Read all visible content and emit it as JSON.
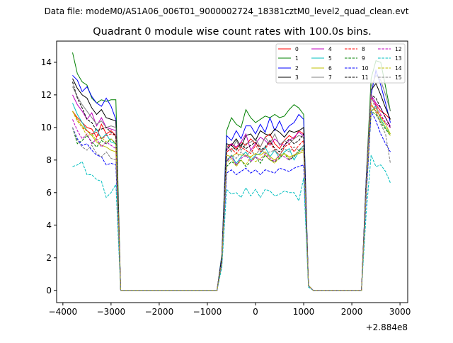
{
  "chart_data": {
    "type": "line",
    "suptitle": "Data file: modeM0/AS1A06_006T01_9000002724_18381cztM0_level2_quad_clean.evt",
    "title": "Quadrant 0 module wise count rates with 100.0s bins.",
    "xlabel": "",
    "ylabel": "",
    "x_offset_label": "+2.884e8",
    "x_start": -3800,
    "x_step": 100,
    "xlim": [
      -4130,
      3160
    ],
    "ylim": [
      -0.75,
      15.3
    ],
    "xticks": [
      -4000,
      -3000,
      -2000,
      -1000,
      0,
      1000,
      2000,
      3000
    ],
    "xtick_labels": [
      "−4000",
      "−3000",
      "−2000",
      "−1000",
      "0",
      "1000",
      "2000",
      "3000"
    ],
    "yticks": [
      0,
      2,
      4,
      6,
      8,
      10,
      12,
      14
    ],
    "ytick_labels": [
      "0",
      "2",
      "4",
      "6",
      "8",
      "10",
      "12",
      "14"
    ],
    "grid": false,
    "legend_position": "top-right",
    "series": [
      {
        "name": "0",
        "color": "#ff0000",
        "dash": false,
        "values": [
          11.0,
          10.6,
          10.3,
          10.0,
          9.9,
          9.4,
          10.2,
          9.6,
          9.8,
          9.5,
          0,
          0,
          0,
          0,
          0,
          0,
          0,
          0,
          0,
          0,
          0,
          0,
          0,
          0,
          0,
          0,
          0,
          0,
          0,
          0,
          0,
          2.0,
          8.8,
          9.0,
          8.7,
          9.1,
          8.9,
          9.3,
          9.0,
          8.8,
          9.4,
          9.6,
          9.0,
          8.7,
          9.2,
          9.5,
          9.3,
          9.8,
          9.6,
          0.3,
          0,
          0,
          0,
          0,
          0,
          0,
          0,
          0,
          0,
          0,
          0,
          6.5,
          11.8,
          11.4,
          11.0,
          10.8,
          10.5
        ]
      },
      {
        "name": "1",
        "color": "#008000",
        "dash": false,
        "values": [
          14.6,
          13.3,
          12.8,
          12.6,
          11.8,
          11.5,
          11.7,
          11.6,
          11.7,
          11.7,
          0,
          0,
          0,
          0,
          0,
          0,
          0,
          0,
          0,
          0,
          0,
          0,
          0,
          0,
          0,
          0,
          0,
          0,
          0,
          0,
          0,
          2.2,
          9.8,
          10.6,
          10.2,
          10.0,
          11.1,
          10.6,
          10.3,
          10.5,
          10.7,
          10.6,
          10.8,
          10.6,
          10.7,
          11.1,
          11.4,
          11.2,
          10.8,
          0.3,
          0,
          0,
          0,
          0,
          0,
          0,
          0,
          0,
          0,
          0,
          0,
          7.0,
          13.0,
          14.1,
          14.0,
          12.5,
          11.0
        ]
      },
      {
        "name": "2",
        "color": "#0000ff",
        "dash": false,
        "values": [
          13.2,
          12.9,
          12.2,
          12.5,
          11.9,
          11.5,
          11.3,
          11.8,
          11.3,
          10.5,
          0,
          0,
          0,
          0,
          0,
          0,
          0,
          0,
          0,
          0,
          0,
          0,
          0,
          0,
          0,
          0,
          0,
          0,
          0,
          0,
          0,
          2.1,
          9.5,
          9.2,
          9.8,
          9.3,
          10.1,
          10.1,
          9.6,
          10.2,
          9.7,
          10.6,
          9.8,
          10.4,
          9.7,
          10.1,
          10.3,
          10.8,
          10.5,
          0.3,
          0,
          0,
          0,
          0,
          0,
          0,
          0,
          0,
          0,
          0,
          0,
          7.0,
          12.0,
          13.5,
          12.6,
          11.5,
          10.3
        ]
      },
      {
        "name": "3",
        "color": "#000000",
        "dash": false,
        "values": [
          13.0,
          12.4,
          12.0,
          11.8,
          11.2,
          10.8,
          11.1,
          10.6,
          10.5,
          10.4,
          0,
          0,
          0,
          0,
          0,
          0,
          0,
          0,
          0,
          0,
          0,
          0,
          0,
          0,
          0,
          0,
          0,
          0,
          0,
          0,
          0,
          2.0,
          9.0,
          8.9,
          9.3,
          8.8,
          9.5,
          9.6,
          9.2,
          9.8,
          9.6,
          9.5,
          9.9,
          9.7,
          9.4,
          9.8,
          9.7,
          9.8,
          10.0,
          0.3,
          0,
          0,
          0,
          0,
          0,
          0,
          0,
          0,
          0,
          0,
          0,
          6.8,
          12.3,
          12.7,
          12.0,
          11.2,
          10.5
        ]
      },
      {
        "name": "4",
        "color": "#bf00bf",
        "dash": false,
        "values": [
          12.0,
          11.4,
          11.0,
          10.5,
          10.9,
          10.1,
          10.6,
          10.0,
          9.9,
          9.8,
          0,
          0,
          0,
          0,
          0,
          0,
          0,
          0,
          0,
          0,
          0,
          0,
          0,
          0,
          0,
          0,
          0,
          0,
          0,
          0,
          0,
          1.9,
          8.6,
          9.0,
          8.8,
          9.1,
          9.6,
          8.6,
          9.0,
          9.4,
          9.2,
          8.9,
          9.3,
          9.0,
          8.9,
          9.2,
          9.4,
          9.7,
          9.5,
          0.3,
          0,
          0,
          0,
          0,
          0,
          0,
          0,
          0,
          0,
          0,
          0,
          6.4,
          12.0,
          11.5,
          11.2,
          10.6,
          10.1
        ]
      },
      {
        "name": "5",
        "color": "#00bfbf",
        "dash": false,
        "values": [
          11.5,
          10.8,
          10.3,
          9.8,
          9.5,
          9.9,
          9.3,
          9.6,
          9.1,
          9.0,
          0,
          0,
          0,
          0,
          0,
          0,
          0,
          0,
          0,
          0,
          0,
          0,
          0,
          0,
          0,
          0,
          0,
          0,
          0,
          0,
          0,
          1.8,
          7.9,
          8.3,
          7.8,
          8.2,
          8.5,
          8.0,
          8.3,
          8.4,
          8.8,
          8.2,
          8.6,
          8.1,
          8.5,
          8.7,
          8.0,
          8.5,
          8.9,
          0.3,
          0,
          0,
          0,
          0,
          0,
          0,
          0,
          0,
          0,
          0,
          0,
          6.0,
          11.0,
          11.3,
          10.5,
          10.0,
          9.6
        ]
      },
      {
        "name": "6",
        "color": "#bfbf00",
        "dash": false,
        "values": [
          11.0,
          10.5,
          10.1,
          9.8,
          9.5,
          9.1,
          8.9,
          8.8,
          8.6,
          8.5,
          0,
          0,
          0,
          0,
          0,
          0,
          0,
          0,
          0,
          0,
          0,
          0,
          0,
          0,
          0,
          0,
          0,
          0,
          0,
          0,
          0,
          1.8,
          8.3,
          8.2,
          8.4,
          8.3,
          8.3,
          8.2,
          8.4,
          8.3,
          8.5,
          8.2,
          8.0,
          8.3,
          8.4,
          8.2,
          8.3,
          8.4,
          8.5,
          0.3,
          0,
          0,
          0,
          0,
          0,
          0,
          0,
          0,
          0,
          0,
          0,
          6.2,
          11.0,
          11.2,
          10.6,
          10.2,
          9.6
        ]
      },
      {
        "name": "7",
        "color": "#808080",
        "dash": false,
        "values": [
          12.5,
          11.9,
          11.4,
          11.0,
          10.6,
          10.2,
          10.4,
          10.0,
          10.1,
          10.0,
          0,
          0,
          0,
          0,
          0,
          0,
          0,
          0,
          0,
          0,
          0,
          0,
          0,
          0,
          0,
          0,
          0,
          0,
          0,
          0,
          0,
          1.9,
          8.9,
          8.5,
          9.2,
          8.6,
          9.0,
          9.1,
          9.3,
          8.8,
          9.4,
          9.0,
          9.6,
          8.9,
          9.2,
          9.0,
          9.3,
          9.5,
          9.4,
          0.3,
          0,
          0,
          0,
          0,
          0,
          0,
          0,
          0,
          0,
          0,
          0,
          6.8,
          12.5,
          13.2,
          12.9,
          12.0,
          11.0
        ]
      },
      {
        "name": "8",
        "color": "#ff0000",
        "dash": true,
        "values": [
          11.0,
          10.4,
          10.0,
          9.8,
          9.6,
          9.7,
          9.3,
          9.5,
          9.6,
          9.5,
          0,
          0,
          0,
          0,
          0,
          0,
          0,
          0,
          0,
          0,
          0,
          0,
          0,
          0,
          0,
          0,
          0,
          0,
          0,
          0,
          0,
          1.8,
          8.5,
          8.7,
          8.4,
          8.8,
          8.6,
          8.4,
          8.9,
          8.5,
          8.7,
          9.1,
          8.6,
          8.3,
          8.8,
          9.0,
          8.5,
          8.9,
          9.2,
          0.3,
          0,
          0,
          0,
          0,
          0,
          0,
          0,
          0,
          0,
          0,
          0,
          6.3,
          11.4,
          11.0,
          10.7,
          10.3,
          10.0
        ]
      },
      {
        "name": "9",
        "color": "#008000",
        "dash": true,
        "values": [
          10.0,
          9.0,
          9.2,
          9.5,
          9.1,
          8.8,
          9.2,
          9.0,
          9.3,
          9.0,
          0,
          0,
          0,
          0,
          0,
          0,
          0,
          0,
          0,
          0,
          0,
          0,
          0,
          0,
          0,
          0,
          0,
          0,
          0,
          0,
          0,
          1.7,
          7.6,
          7.9,
          7.7,
          8.0,
          7.6,
          7.9,
          8.2,
          7.8,
          8.3,
          8.0,
          7.9,
          8.1,
          8.4,
          8.0,
          8.2,
          8.6,
          8.7,
          0.3,
          0,
          0,
          0,
          0,
          0,
          0,
          0,
          0,
          0,
          0,
          0,
          6.0,
          11.0,
          10.8,
          10.3,
          9.9,
          9.5
        ]
      },
      {
        "name": "10",
        "color": "#0000ff",
        "dash": true,
        "values": [
          10.0,
          9.3,
          8.9,
          9.0,
          8.6,
          8.3,
          8.2,
          7.7,
          7.8,
          7.7,
          0,
          0,
          0,
          0,
          0,
          0,
          0,
          0,
          0,
          0,
          0,
          0,
          0,
          0,
          0,
          0,
          0,
          0,
          0,
          0,
          0,
          1.6,
          7.2,
          7.4,
          7.1,
          7.3,
          7.5,
          7.2,
          7.4,
          7.1,
          7.4,
          7.3,
          7.2,
          7.5,
          7.4,
          7.3,
          7.5,
          7.6,
          7.7,
          0.3,
          0,
          0,
          0,
          0,
          0,
          0,
          0,
          0,
          0,
          0,
          0,
          5.8,
          11.0,
          10.4,
          9.6,
          9.0,
          8.5
        ]
      },
      {
        "name": "11",
        "color": "#000000",
        "dash": true,
        "values": [
          12.8,
          11.8,
          11.2,
          10.5,
          10.3,
          9.8,
          9.9,
          10.0,
          9.7,
          9.5,
          0,
          0,
          0,
          0,
          0,
          0,
          0,
          0,
          0,
          0,
          0,
          0,
          0,
          0,
          0,
          0,
          0,
          0,
          0,
          0,
          0,
          1.9,
          8.7,
          8.9,
          8.6,
          9.0,
          8.7,
          8.9,
          9.1,
          8.6,
          8.8,
          9.2,
          8.7,
          8.5,
          8.9,
          9.3,
          9.0,
          9.2,
          9.6,
          0.3,
          0,
          0,
          0,
          0,
          0,
          0,
          0,
          0,
          0,
          0,
          0,
          6.6,
          12.0,
          11.8,
          11.2,
          10.6,
          10.0
        ]
      },
      {
        "name": "12",
        "color": "#bf00bf",
        "dash": true,
        "values": [
          10.5,
          9.8,
          9.3,
          9.6,
          9.0,
          9.3,
          8.8,
          9.1,
          8.9,
          8.7,
          0,
          0,
          0,
          0,
          0,
          0,
          0,
          0,
          0,
          0,
          0,
          0,
          0,
          0,
          0,
          0,
          0,
          0,
          0,
          0,
          0,
          1.7,
          7.9,
          8.2,
          7.7,
          8.1,
          8.3,
          7.9,
          8.2,
          8.0,
          8.4,
          8.1,
          7.9,
          8.3,
          8.2,
          8.0,
          8.3,
          8.5,
          8.6,
          0.3,
          0,
          0,
          0,
          0,
          0,
          0,
          0,
          0,
          0,
          0,
          0,
          6.2,
          12.0,
          11.3,
          10.8,
          10.3,
          10.0
        ]
      },
      {
        "name": "13",
        "color": "#00bfbf",
        "dash": true,
        "values": [
          7.6,
          7.7,
          7.9,
          7.1,
          7.1,
          6.8,
          6.7,
          5.7,
          6.0,
          6.5,
          0,
          0,
          0,
          0,
          0,
          0,
          0,
          0,
          0,
          0,
          0,
          0,
          0,
          0,
          0,
          0,
          0,
          0,
          0,
          0,
          0,
          1.4,
          6.2,
          5.9,
          6.0,
          5.7,
          6.3,
          5.8,
          6.2,
          5.7,
          6.2,
          6.1,
          5.8,
          5.9,
          6.1,
          6.0,
          6.0,
          5.5,
          6.9,
          0.2,
          0,
          0,
          0,
          0,
          0,
          0,
          0,
          0,
          0,
          0,
          0,
          4.8,
          8.3,
          7.6,
          7.7,
          7.3,
          6.6
        ]
      },
      {
        "name": "14",
        "color": "#bfbf00",
        "dash": true,
        "values": [
          11.0,
          10.4,
          10.0,
          9.5,
          9.6,
          9.2,
          9.4,
          9.1,
          9.3,
          9.0,
          0,
          0,
          0,
          0,
          0,
          0,
          0,
          0,
          0,
          0,
          0,
          0,
          0,
          0,
          0,
          0,
          0,
          0,
          0,
          0,
          0,
          1.7,
          7.8,
          8.1,
          7.6,
          8.0,
          7.7,
          8.2,
          7.9,
          8.1,
          8.3,
          8.0,
          7.8,
          8.2,
          8.4,
          8.1,
          8.3,
          8.5,
          8.6,
          0.3,
          0,
          0,
          0,
          0,
          0,
          0,
          0,
          0,
          0,
          0,
          0,
          6.1,
          11.5,
          10.9,
          10.4,
          10.0,
          9.5
        ]
      },
      {
        "name": "15",
        "color": "#808080",
        "dash": true,
        "values": [
          10.0,
          9.2,
          8.8,
          8.6,
          8.9,
          8.4,
          8.2,
          8.5,
          8.1,
          8.0,
          0,
          0,
          0,
          0,
          0,
          0,
          0,
          0,
          0,
          0,
          0,
          0,
          0,
          0,
          0,
          0,
          0,
          0,
          0,
          0,
          0,
          1.7,
          8.0,
          8.3,
          8.1,
          8.5,
          8.2,
          8.6,
          8.3,
          8.7,
          8.4,
          8.5,
          8.6,
          8.3,
          8.7,
          8.5,
          8.8,
          8.6,
          8.9,
          0.3,
          0,
          0,
          0,
          0,
          0,
          0,
          0,
          0,
          0,
          0,
          0,
          6.3,
          12.0,
          11.0,
          10.2,
          9.6,
          7.8
        ]
      }
    ]
  }
}
